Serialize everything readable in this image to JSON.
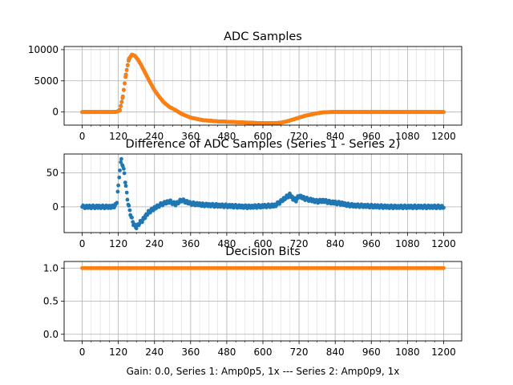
{
  "figure": {
    "caption": "Gain: 0.0, Series 1: Amp0p5, 1x --- Series 2: Amp0p9, 1x"
  },
  "colors": {
    "series_blue": "#1f77b4",
    "series_orange": "#ff7f0e",
    "grid": "#b0b0b0",
    "axis": "#000000"
  },
  "chart_data": [
    {
      "type": "scatter",
      "title": "ADC Samples",
      "xlabel": "",
      "ylabel": "",
      "xlim": [
        -60,
        1260
      ],
      "ylim": [
        -2100,
        10500
      ],
      "xticks": [
        0,
        120,
        240,
        360,
        480,
        600,
        720,
        840,
        960,
        1080,
        1200
      ],
      "xtick_labels": [
        "0",
        "120",
        "240",
        "360",
        "480",
        "600",
        "720",
        "840",
        "960",
        "1080",
        "1200"
      ],
      "x_minor_step": 30,
      "yticks": [
        0,
        5000,
        10000
      ],
      "ytick_labels": [
        "0",
        "5000",
        "10000"
      ],
      "grid": true,
      "series": [
        {
          "color_key": "series_blue",
          "x": [
            0,
            100,
            115,
            125,
            135,
            145,
            155,
            165,
            175,
            185,
            195,
            210,
            225,
            240,
            255,
            270,
            290,
            310,
            330,
            360,
            400,
            450,
            500,
            550,
            600,
            640,
            660,
            680,
            700,
            720,
            740,
            760,
            780,
            800,
            830,
            880,
            960,
            1080,
            1200
          ],
          "y": [
            0,
            0,
            50,
            300,
            2500,
            6000,
            8500,
            9200,
            9000,
            8400,
            7600,
            6200,
            4800,
            3500,
            2500,
            1600,
            800,
            300,
            -300,
            -900,
            -1300,
            -1500,
            -1600,
            -1700,
            -1800,
            -1800,
            -1700,
            -1500,
            -1200,
            -900,
            -600,
            -400,
            -200,
            -50,
            0,
            0,
            0,
            0,
            0
          ]
        },
        {
          "color_key": "series_orange",
          "x": [
            0,
            100,
            115,
            125,
            135,
            145,
            155,
            165,
            175,
            185,
            195,
            210,
            225,
            240,
            255,
            270,
            290,
            310,
            330,
            360,
            400,
            450,
            500,
            550,
            600,
            640,
            660,
            680,
            700,
            720,
            740,
            760,
            780,
            800,
            830,
            880,
            960,
            1080,
            1200
          ],
          "y": [
            0,
            0,
            50,
            250,
            2450,
            5950,
            8450,
            9180,
            9000,
            8400,
            7600,
            6200,
            4800,
            3500,
            2500,
            1600,
            800,
            300,
            -300,
            -900,
            -1300,
            -1500,
            -1600,
            -1700,
            -1800,
            -1800,
            -1700,
            -1500,
            -1200,
            -900,
            -600,
            -400,
            -200,
            -50,
            0,
            0,
            0,
            0,
            0
          ]
        }
      ]
    },
    {
      "type": "scatter",
      "title": "Difference of ADC Samples (Series 1 - Series 2)",
      "xlabel": "",
      "ylabel": "",
      "xlim": [
        -60,
        1260
      ],
      "ylim": [
        -38,
        78
      ],
      "xticks": [
        0,
        120,
        240,
        360,
        480,
        600,
        720,
        840,
        960,
        1080,
        1200
      ],
      "xtick_labels": [
        "0",
        "120",
        "240",
        "360",
        "480",
        "600",
        "720",
        "840",
        "960",
        "1080",
        "1200"
      ],
      "x_minor_step": 30,
      "yticks": [
        0,
        50
      ],
      "ytick_labels": [
        "0",
        "50"
      ],
      "grid": true,
      "series": [
        {
          "color_key": "series_blue",
          "x": [
            0,
            50,
            100,
            110,
            115,
            120,
            125,
            130,
            135,
            140,
            145,
            150,
            155,
            160,
            165,
            170,
            175,
            180,
            185,
            190,
            200,
            210,
            220,
            230,
            240,
            255,
            270,
            290,
            310,
            330,
            360,
            400,
            450,
            500,
            550,
            600,
            640,
            660,
            670,
            680,
            690,
            700,
            710,
            720,
            740,
            760,
            780,
            800,
            820,
            840,
            860,
            880,
            900,
            960,
            1020,
            1080,
            1140,
            1200
          ],
          "y": [
            0,
            0,
            0,
            2,
            8,
            30,
            55,
            70,
            60,
            50,
            30,
            12,
            0,
            -10,
            -18,
            -25,
            -28,
            -30,
            -27,
            -24,
            -20,
            -14,
            -8,
            -5,
            -2,
            2,
            5,
            8,
            4,
            10,
            5,
            3,
            2,
            1,
            0,
            1,
            2,
            8,
            12,
            15,
            18,
            12,
            10,
            16,
            12,
            10,
            8,
            9,
            7,
            6,
            5,
            3,
            2,
            1,
            0,
            0,
            0,
            0
          ]
        }
      ]
    },
    {
      "type": "scatter",
      "title": "Decision Bits",
      "xlabel": "Gain: 0.0, Series 1: Amp0p5, 1x --- Series 2: Amp0p9, 1x",
      "ylabel": "",
      "xlim": [
        -60,
        1260
      ],
      "ylim": [
        -0.1,
        1.1
      ],
      "xticks": [
        0,
        120,
        240,
        360,
        480,
        600,
        720,
        840,
        960,
        1080,
        1200
      ],
      "xtick_labels": [
        "0",
        "120",
        "240",
        "360",
        "480",
        "600",
        "720",
        "840",
        "960",
        "1080",
        "1200"
      ],
      "x_minor_step": 30,
      "yticks": [
        0.0,
        0.5,
        1.0
      ],
      "ytick_labels": [
        "0.0",
        "0.5",
        "1.0"
      ],
      "grid": true,
      "series": [
        {
          "color_key": "series_orange",
          "x": [
            0,
            1200
          ],
          "y": [
            1,
            1
          ]
        }
      ]
    }
  ]
}
